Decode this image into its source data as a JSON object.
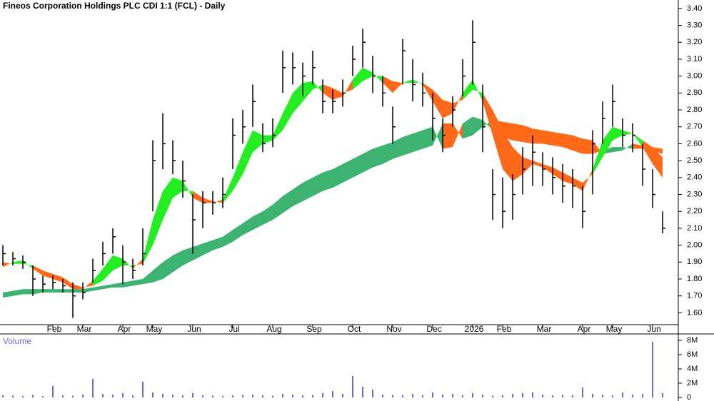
{
  "chart_data": [
    {
      "type": "ohlc",
      "title": "Fineos Corporation Holdings PLC CDI 1:1 (FCL) - Daily",
      "categories": [
        null,
        null,
        null,
        null,
        null,
        "Feb",
        null,
        null,
        "Mar",
        null,
        null,
        null,
        "Apr",
        null,
        null,
        "May",
        null,
        null,
        null,
        "Jun",
        null,
        null,
        null,
        "Jul",
        null,
        null,
        null,
        "Aug",
        null,
        null,
        null,
        "Sep",
        null,
        null,
        null,
        "Oct",
        null,
        null,
        null,
        "Nov",
        null,
        null,
        null,
        "Dec",
        null,
        null,
        null,
        "2026",
        null,
        null,
        "Feb",
        null,
        null,
        null,
        "Mar",
        null,
        null,
        null,
        "Apr",
        null,
        null,
        "May",
        null,
        null,
        null,
        "Jun",
        null
      ],
      "high": [
        2.0,
        1.96,
        1.94,
        1.88,
        1.82,
        1.82,
        1.8,
        1.78,
        1.78,
        1.92,
        2.02,
        2.1,
        2.0,
        1.92,
        2.1,
        2.62,
        2.78,
        2.62,
        2.5,
        2.3,
        2.32,
        2.32,
        2.4,
        2.75,
        2.8,
        2.95,
        2.72,
        2.75,
        3.15,
        3.14,
        3.08,
        3.15,
        2.98,
        2.92,
        2.98,
        3.18,
        3.28,
        3.12,
        3.0,
        2.82,
        3.22,
        3.1,
        3.02,
        2.9,
        2.75,
        2.88,
        3.1,
        3.33,
        2.95,
        2.45,
        2.4,
        2.42,
        2.58,
        2.65,
        2.55,
        2.52,
        2.48,
        2.45,
        2.35,
        2.68,
        2.85,
        2.95,
        2.75,
        2.72,
        2.6,
        2.45,
        2.2
      ],
      "low": [
        1.88,
        1.88,
        1.86,
        1.7,
        1.72,
        1.74,
        1.72,
        1.57,
        1.68,
        1.78,
        1.88,
        1.95,
        1.77,
        1.8,
        1.88,
        2.2,
        2.45,
        2.42,
        2.28,
        1.95,
        2.1,
        2.18,
        2.22,
        2.45,
        2.6,
        2.7,
        2.55,
        2.58,
        2.9,
        2.95,
        2.88,
        2.95,
        2.78,
        2.78,
        2.82,
        3.0,
        3.05,
        2.9,
        2.82,
        2.6,
        2.95,
        2.85,
        2.82,
        2.62,
        2.55,
        2.7,
        2.88,
        2.95,
        2.55,
        2.15,
        2.1,
        2.15,
        2.3,
        2.35,
        2.35,
        2.3,
        2.25,
        2.22,
        2.1,
        2.3,
        2.6,
        2.7,
        2.58,
        2.55,
        2.35,
        2.22,
        2.07
      ],
      "close": [
        1.95,
        1.92,
        1.9,
        1.8,
        1.77,
        1.78,
        1.76,
        1.7,
        1.72,
        1.85,
        1.95,
        2.05,
        1.9,
        1.85,
        1.95,
        2.5,
        2.6,
        2.5,
        2.38,
        2.15,
        2.25,
        2.25,
        2.3,
        2.65,
        2.7,
        2.85,
        2.6,
        2.65,
        3.05,
        3.05,
        3.0,
        3.05,
        2.85,
        2.85,
        2.9,
        3.1,
        3.2,
        3.0,
        2.9,
        2.7,
        3.15,
        2.95,
        2.9,
        2.75,
        2.65,
        2.8,
        3.0,
        3.2,
        2.7,
        2.3,
        2.2,
        2.3,
        2.45,
        2.55,
        2.45,
        2.4,
        2.35,
        2.35,
        2.2,
        2.6,
        2.75,
        2.85,
        2.65,
        2.65,
        2.45,
        2.3,
        2.1
      ],
      "bar_color": "#000000",
      "ribbons": [
        {
          "up_color": "#3cb371",
          "down_color": "#ff6a1a",
          "fast": [
            1.72,
            1.73,
            1.74,
            1.74,
            1.74,
            1.74,
            1.74,
            1.74,
            1.74,
            1.75,
            1.76,
            1.77,
            1.78,
            1.79,
            1.8,
            1.85,
            1.9,
            1.94,
            1.97,
            1.99,
            2.01,
            2.03,
            2.05,
            2.09,
            2.13,
            2.17,
            2.2,
            2.24,
            2.29,
            2.33,
            2.37,
            2.4,
            2.43,
            2.45,
            2.48,
            2.51,
            2.54,
            2.57,
            2.59,
            2.61,
            2.64,
            2.66,
            2.68,
            2.7,
            2.57,
            2.58,
            2.72,
            2.76,
            2.74,
            2.68,
            2.64,
            2.62,
            2.61,
            2.6,
            2.6,
            2.59,
            2.58,
            2.56,
            2.54,
            2.54,
            2.56,
            2.58,
            2.58,
            2.57,
            2.57,
            2.56,
            2.54
          ],
          "slow": [
            1.69,
            1.7,
            1.71,
            1.71,
            1.72,
            1.72,
            1.72,
            1.72,
            1.72,
            1.73,
            1.74,
            1.75,
            1.75,
            1.76,
            1.77,
            1.78,
            1.8,
            1.84,
            1.88,
            1.91,
            1.94,
            1.97,
            1.99,
            2.02,
            2.06,
            2.09,
            2.12,
            2.15,
            2.19,
            2.23,
            2.26,
            2.29,
            2.32,
            2.34,
            2.37,
            2.4,
            2.43,
            2.46,
            2.48,
            2.51,
            2.53,
            2.55,
            2.57,
            2.59,
            2.72,
            2.72,
            2.63,
            2.65,
            2.7,
            2.74,
            2.73,
            2.72,
            2.71,
            2.69,
            2.68,
            2.67,
            2.66,
            2.65,
            2.63,
            2.62,
            2.54,
            2.55,
            2.56,
            2.6,
            2.59,
            2.58,
            2.57
          ]
        },
        {
          "up_color": "#22ee22",
          "down_color": "#ff6a1a",
          "fast": [
            1.87,
            1.9,
            1.91,
            1.86,
            1.82,
            1.8,
            1.78,
            1.74,
            1.74,
            1.79,
            1.86,
            1.94,
            1.92,
            1.86,
            1.92,
            2.15,
            2.32,
            2.4,
            2.38,
            2.28,
            2.25,
            2.25,
            2.27,
            2.4,
            2.55,
            2.68,
            2.65,
            2.65,
            2.78,
            2.9,
            2.96,
            2.97,
            2.9,
            2.86,
            2.88,
            2.98,
            3.05,
            3.02,
            2.96,
            2.9,
            2.96,
            2.98,
            2.95,
            2.85,
            2.75,
            2.78,
            2.9,
            2.98,
            2.85,
            2.65,
            2.45,
            2.38,
            2.42,
            2.48,
            2.46,
            2.42,
            2.38,
            2.36,
            2.32,
            2.45,
            2.62,
            2.7,
            2.68,
            2.66,
            2.58,
            2.48,
            2.4
          ],
          "slow": [
            1.9,
            1.89,
            1.89,
            1.88,
            1.85,
            1.83,
            1.81,
            1.77,
            1.75,
            1.76,
            1.79,
            1.85,
            1.88,
            1.88,
            1.89,
            2.0,
            2.15,
            2.28,
            2.32,
            2.32,
            2.28,
            2.26,
            2.25,
            2.32,
            2.42,
            2.55,
            2.6,
            2.62,
            2.68,
            2.78,
            2.85,
            2.92,
            2.95,
            2.93,
            2.9,
            2.92,
            2.97,
            3.0,
            3.0,
            2.97,
            2.96,
            2.96,
            2.96,
            2.92,
            2.86,
            2.84,
            2.86,
            2.92,
            2.9,
            2.8,
            2.68,
            2.58,
            2.52,
            2.5,
            2.48,
            2.46,
            2.43,
            2.4,
            2.37,
            2.42,
            2.52,
            2.62,
            2.65,
            2.66,
            2.62,
            2.58,
            2.52
          ]
        }
      ],
      "ylim": [
        1.53,
        3.45
      ],
      "yticks": [
        {
          "value": 1.6,
          "label": "1.60"
        },
        {
          "value": 1.7,
          "label": "1.70"
        },
        {
          "value": 1.8,
          "label": "1.80"
        },
        {
          "value": 1.9,
          "label": "1.90"
        },
        {
          "value": 2.0,
          "label": "2.00"
        },
        {
          "value": 2.1,
          "label": "2.10"
        },
        {
          "value": 2.2,
          "label": "2.20"
        },
        {
          "value": 2.3,
          "label": "2.30"
        },
        {
          "value": 2.4,
          "label": "2.40"
        },
        {
          "value": 2.5,
          "label": "2.50"
        },
        {
          "value": 2.6,
          "label": "2.60"
        },
        {
          "value": 2.7,
          "label": "2.70"
        },
        {
          "value": 2.8,
          "label": "2.80"
        },
        {
          "value": 2.9,
          "label": "2.90"
        },
        {
          "value": 3.0,
          "label": "3.00"
        },
        {
          "value": 3.1,
          "label": "3.10"
        },
        {
          "value": 3.2,
          "label": "3.20"
        },
        {
          "value": 3.3,
          "label": "3.30"
        },
        {
          "value": 3.4,
          "label": "3.40"
        }
      ]
    },
    {
      "type": "bar",
      "title": "Volume",
      "color": "#6a6ad0",
      "values": [
        300000,
        250000,
        200000,
        350000,
        200000,
        1600000,
        300000,
        250000,
        400000,
        2600000,
        500000,
        400000,
        600000,
        300000,
        2200000,
        700000,
        500000,
        400000,
        300000,
        600000,
        300000,
        250000,
        200000,
        300000,
        350000,
        400000,
        300000,
        250000,
        500000,
        400000,
        300000,
        350000,
        600000,
        900000,
        500000,
        3000000,
        1500000,
        1100000,
        400000,
        350000,
        300000,
        500000,
        300000,
        700000,
        400000,
        500000,
        300000,
        600000,
        400000,
        250000,
        300000,
        500000,
        600000,
        700000,
        400000,
        300000,
        350000,
        300000,
        1400000,
        500000,
        400000,
        300000,
        700000,
        400000,
        500000,
        7800000,
        600000
      ],
      "ylim": [
        0,
        8000000
      ],
      "yticks": [
        0,
        {
          "value": 2000000,
          "label": "2M"
        },
        {
          "value": 4000000,
          "label": "4M"
        },
        {
          "value": 6000000,
          "label": "6M"
        },
        {
          "value": 8000000,
          "label": "8M"
        }
      ]
    }
  ]
}
